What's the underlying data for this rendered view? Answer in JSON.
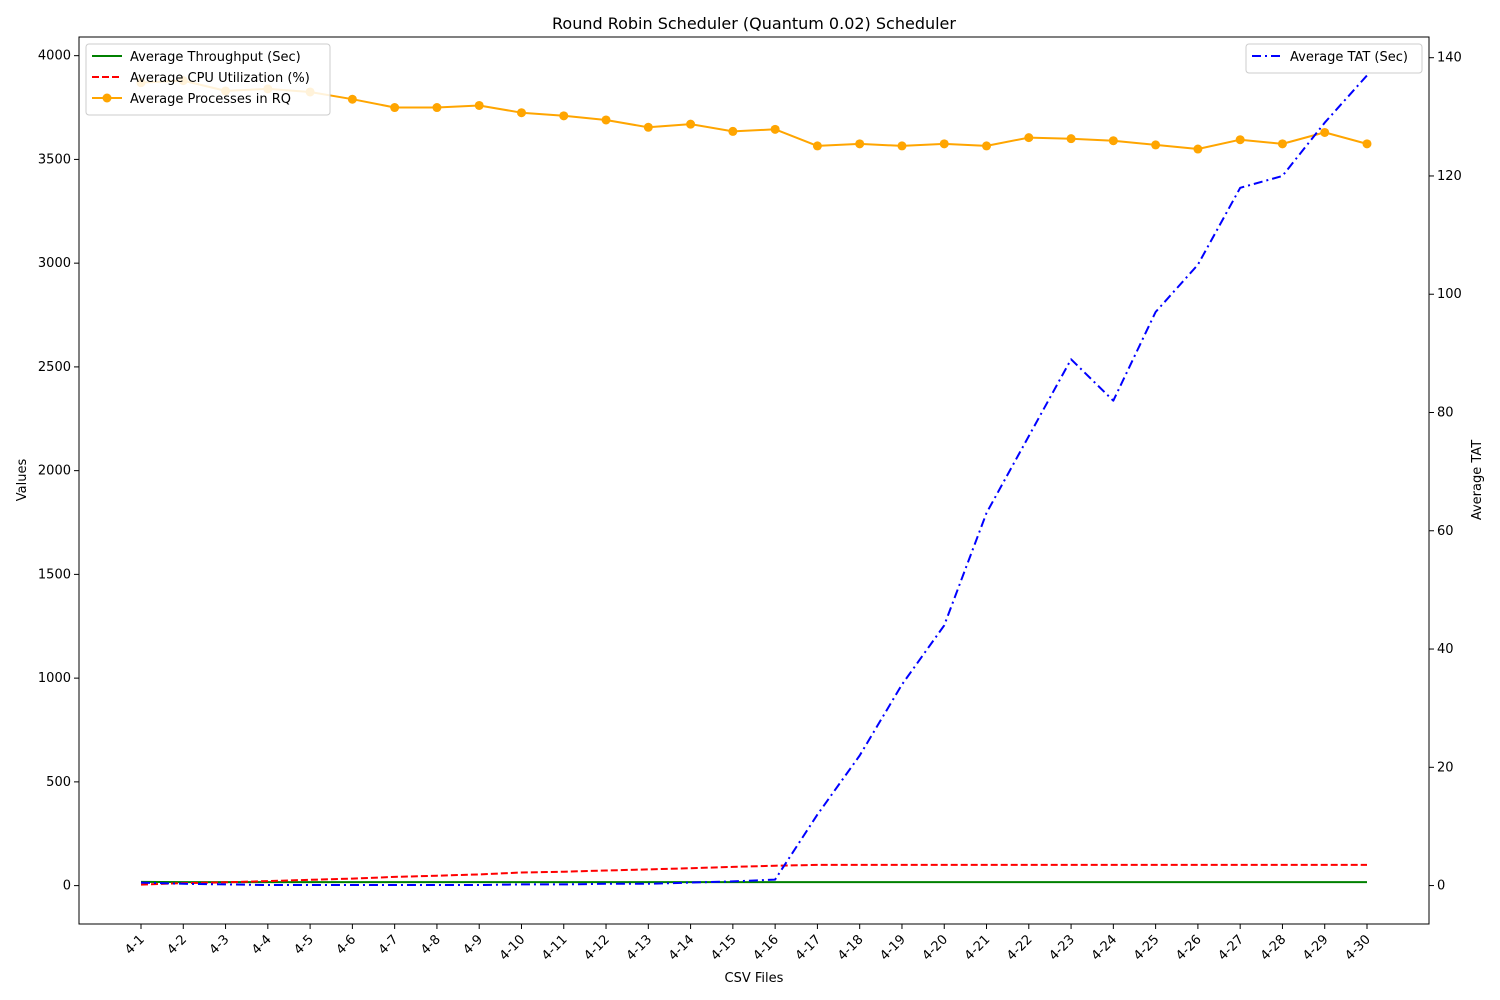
{
  "chart_data": {
    "type": "line",
    "title": "Round Robin Scheduler (Quantum 0.02) Scheduler",
    "xlabel": "CSV Files",
    "ylabel": "Values",
    "ylabel_right": "Average TAT",
    "categories": [
      "4-1",
      "4-2",
      "4-3",
      "4-4",
      "4-5",
      "4-6",
      "4-7",
      "4-8",
      "4-9",
      "4-10",
      "4-11",
      "4-12",
      "4-13",
      "4-14",
      "4-15",
      "4-16",
      "4-17",
      "4-18",
      "4-19",
      "4-20",
      "4-21",
      "4-22",
      "4-23",
      "4-24",
      "4-25",
      "4-26",
      "4-27",
      "4-28",
      "4-29",
      "4-30"
    ],
    "ylim": [
      -185,
      4090
    ],
    "yticks": [
      0,
      500,
      1000,
      1500,
      2000,
      2500,
      3000,
      3500,
      4000
    ],
    "ylim_right": [
      -6.5,
      143.5
    ],
    "yticks_right": [
      0,
      20,
      40,
      60,
      80,
      100,
      120,
      140
    ],
    "grid": false,
    "series": [
      {
        "name": "Average Throughput (Sec)",
        "axis": "left",
        "color": "#008000",
        "style": "solid",
        "marker": "none",
        "values": [
          18,
          17,
          17,
          17,
          17,
          17,
          17,
          17,
          17,
          17,
          17,
          17,
          17,
          17,
          17,
          17,
          17,
          17,
          17,
          17,
          17,
          17,
          17,
          17,
          17,
          17,
          17,
          17,
          17,
          17
        ]
      },
      {
        "name": "Average CPU Utilization (%)",
        "axis": "left",
        "color": "#ff0000",
        "style": "dashed",
        "marker": "none",
        "values": [
          5,
          12,
          16,
          22,
          28,
          34,
          42,
          48,
          54,
          63,
          67,
          73,
          78,
          84,
          90,
          96,
          100,
          100,
          100,
          100,
          100,
          100,
          100,
          100,
          100,
          100,
          100,
          100,
          100,
          100
        ]
      },
      {
        "name": "Average Processes in RQ",
        "axis": "left",
        "color": "#ffa500",
        "style": "solid",
        "marker": "circle",
        "values": [
          3870,
          3880,
          3830,
          3840,
          3825,
          3790,
          3750,
          3750,
          3760,
          3725,
          3710,
          3690,
          3655,
          3670,
          3635,
          3645,
          3565,
          3575,
          3565,
          3575,
          3565,
          3605,
          3600,
          3590,
          3570,
          3550,
          3595,
          3575,
          3630,
          3575
        ]
      },
      {
        "name": "Average TAT (Sec)",
        "axis": "right",
        "color": "#0000ff",
        "style": "dashdot",
        "marker": "none",
        "values": [
          0.5,
          0.3,
          0.2,
          0.1,
          0.1,
          0.1,
          0.1,
          0.1,
          0.1,
          0.2,
          0.2,
          0.3,
          0.3,
          0.5,
          0.7,
          1.0,
          12,
          22,
          34,
          44,
          63,
          76,
          89,
          82,
          97,
          105,
          118,
          120,
          129,
          137
        ]
      }
    ],
    "legend_left_position": "upper-left",
    "legend_right_position": "upper-right"
  }
}
